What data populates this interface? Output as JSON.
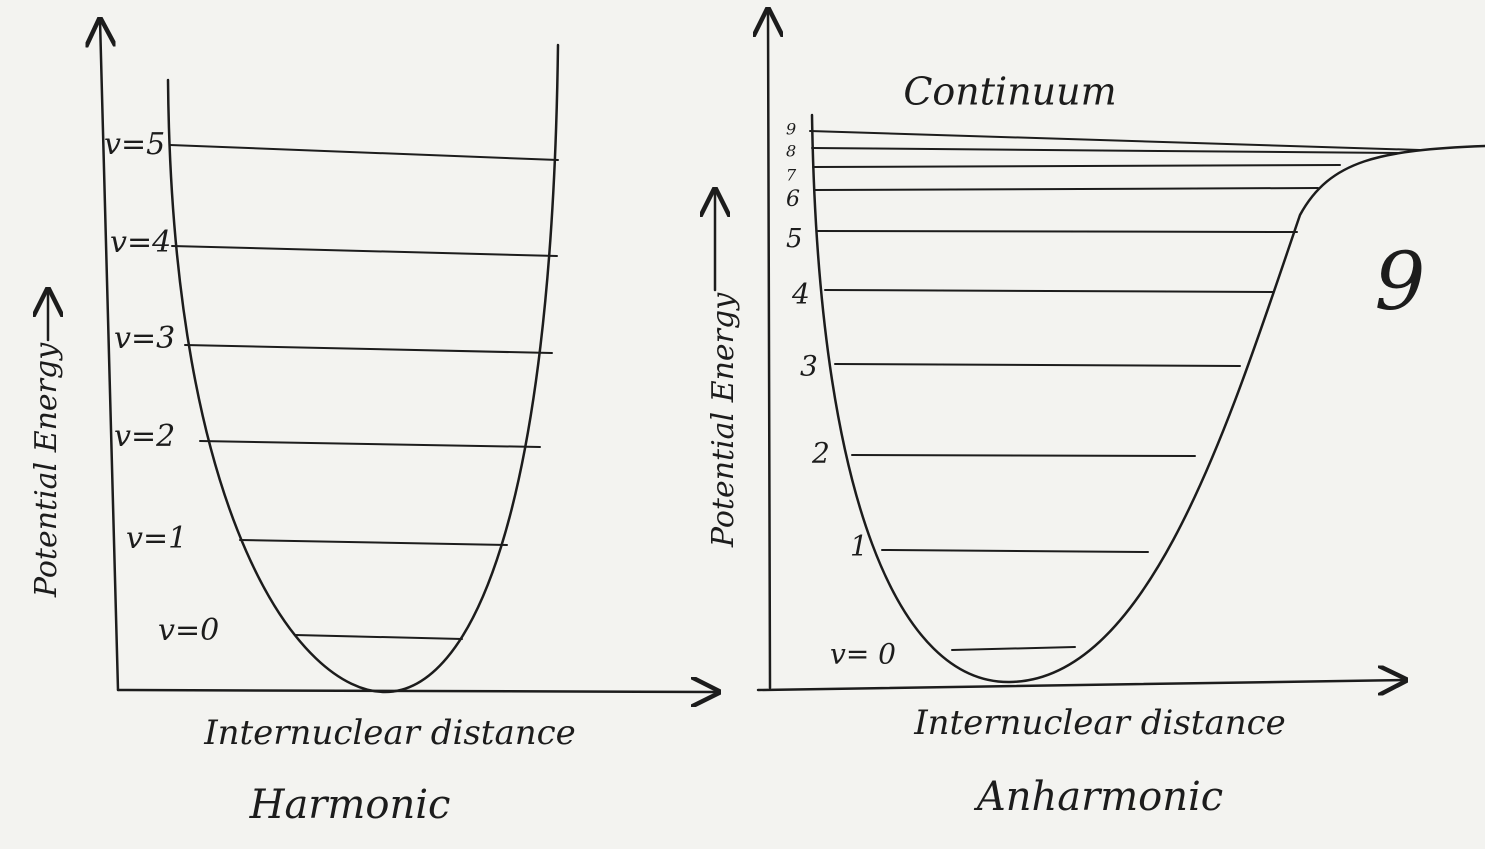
{
  "panels": [
    {
      "title": "Harmonic",
      "x_label": "Internuclear distance",
      "y_label": "Potential Energy",
      "levels": [
        "v=5",
        "v=4",
        "v=3",
        "v=2",
        "v=1",
        "v=0"
      ]
    },
    {
      "title": "Anharmonic",
      "x_label": "Internuclear distance",
      "y_label": "Potential Energy",
      "region_label": "Continuum",
      "levels": [
        "v= 0",
        "1",
        "2",
        "3",
        "4",
        "5",
        "6",
        "7",
        "8",
        "9"
      ]
    }
  ],
  "page_number": "9"
}
